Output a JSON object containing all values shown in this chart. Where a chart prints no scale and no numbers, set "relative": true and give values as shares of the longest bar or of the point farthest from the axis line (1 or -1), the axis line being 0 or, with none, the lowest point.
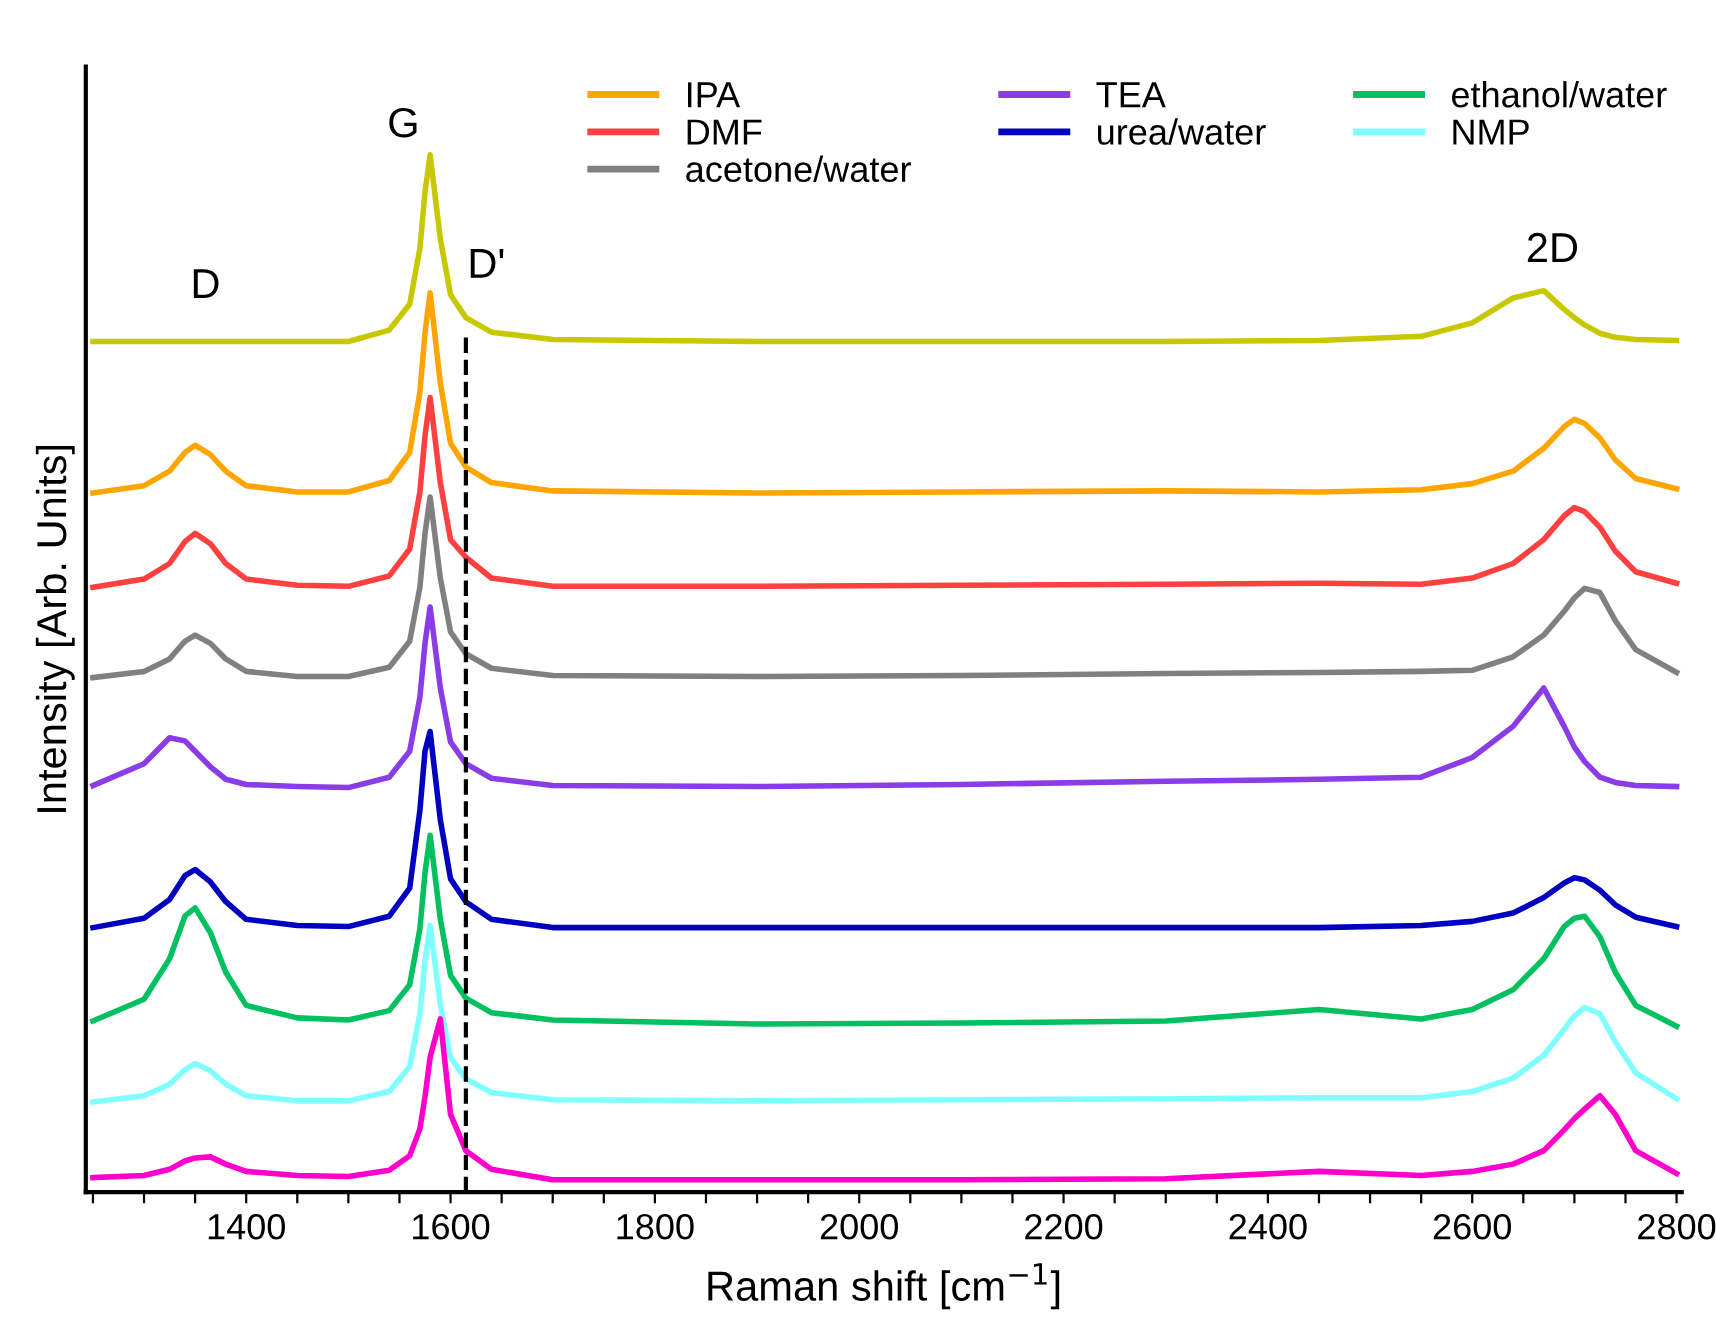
{
  "chart_data": {
    "type": "line",
    "relative": true,
    "xlabel": "Raman shift [cm$^{−1}$]",
    "ylabel": "Intensity [Arb. Units]",
    "xlim": [
      1243,
      2805
    ],
    "xticks": [
      {
        "value": 1250,
        "label": null
      },
      {
        "value": 1300,
        "label": null
      },
      {
        "value": 1350,
        "label": null
      },
      1400,
      {
        "value": 1450,
        "label": null
      },
      {
        "value": 1500,
        "label": null
      },
      {
        "value": 1550,
        "label": null
      },
      1600,
      {
        "value": 1650,
        "label": null
      },
      {
        "value": 1700,
        "label": null
      },
      {
        "value": 1750,
        "label": null
      },
      1800,
      {
        "value": 1850,
        "label": null
      },
      {
        "value": 1900,
        "label": null
      },
      {
        "value": 1950,
        "label": null
      },
      2000,
      {
        "value": 2050,
        "label": null
      },
      {
        "value": 2100,
        "label": null
      },
      {
        "value": 2150,
        "label": null
      },
      2200,
      {
        "value": 2250,
        "label": null
      },
      {
        "value": 2300,
        "label": null
      },
      {
        "value": 2350,
        "label": null
      },
      2400,
      {
        "value": 2450,
        "label": null
      },
      {
        "value": 2500,
        "label": null
      },
      {
        "value": 2550,
        "label": null
      },
      2600,
      {
        "value": 2650,
        "label": null
      },
      {
        "value": 2700,
        "label": null
      },
      {
        "value": 2750,
        "label": null
      },
      2800
    ],
    "tick_labels": "x",
    "grid": false,
    "legend": "top right",
    "marker": "none",
    "line_style": "solid",
    "x": [
      1250,
      1300,
      1325,
      1340,
      1350,
      1365,
      1380,
      1400,
      1450,
      1500,
      1540,
      1560,
      1570,
      1575,
      1580,
      1590,
      1600,
      1615,
      1640,
      1700,
      1900,
      2100,
      2300,
      2450,
      2550,
      2600,
      2640,
      2670,
      2690,
      2700,
      2710,
      2725,
      2740,
      2760,
      2800
    ],
    "series": [
      {
        "color": "#c8c800",
        "values": [
          0.82,
          0.82,
          0.82,
          0.82,
          0.82,
          0.82,
          0.82,
          0.82,
          0.82,
          0.82,
          0.831,
          0.856,
          0.91,
          0.964,
          1.0,
          0.919,
          0.865,
          0.843,
          0.829,
          0.822,
          0.82,
          0.82,
          0.82,
          0.821,
          0.825,
          0.838,
          0.862,
          0.869,
          0.851,
          0.843,
          0.836,
          0.828,
          0.824,
          0.822,
          0.821
        ]
      },
      {
        "name": "IPA",
        "color": "#ffa500",
        "values": [
          0.674,
          0.681,
          0.695,
          0.713,
          0.72,
          0.711,
          0.695,
          0.681,
          0.675,
          0.675,
          0.686,
          0.713,
          0.771,
          0.828,
          0.867,
          0.78,
          0.722,
          0.699,
          0.684,
          0.676,
          0.674,
          0.675,
          0.676,
          0.675,
          0.677,
          0.683,
          0.695,
          0.717,
          0.738,
          0.745,
          0.741,
          0.727,
          0.706,
          0.688,
          0.678
        ]
      },
      {
        "name": "DMF",
        "color": "#ff4040",
        "values": [
          0.583,
          0.591,
          0.606,
          0.627,
          0.635,
          0.625,
          0.606,
          0.591,
          0.585,
          0.584,
          0.594,
          0.62,
          0.675,
          0.729,
          0.766,
          0.684,
          0.629,
          0.612,
          0.592,
          0.584,
          0.584,
          0.585,
          0.586,
          0.587,
          0.586,
          0.592,
          0.606,
          0.629,
          0.652,
          0.66,
          0.656,
          0.641,
          0.618,
          0.598,
          0.587
        ]
      },
      {
        "name": "acetone/water",
        "color": "#808080",
        "values": [
          0.496,
          0.502,
          0.514,
          0.531,
          0.537,
          0.529,
          0.514,
          0.502,
          0.497,
          0.497,
          0.506,
          0.531,
          0.583,
          0.635,
          0.67,
          0.592,
          0.54,
          0.519,
          0.505,
          0.498,
          0.497,
          0.498,
          0.5,
          0.501,
          0.502,
          0.503,
          0.516,
          0.537,
          0.56,
          0.573,
          0.582,
          0.578,
          0.551,
          0.523,
          0.501
        ]
      },
      {
        "name": "TEA",
        "color": "#8a3ce6",
        "values": [
          0.392,
          0.413,
          0.438,
          0.435,
          0.425,
          0.41,
          0.398,
          0.393,
          0.391,
          0.39,
          0.4,
          0.425,
          0.477,
          0.529,
          0.564,
          0.486,
          0.434,
          0.413,
          0.399,
          0.392,
          0.391,
          0.393,
          0.396,
          0.398,
          0.4,
          0.419,
          0.449,
          0.486,
          0.449,
          0.429,
          0.415,
          0.4,
          0.395,
          0.392,
          0.391
        ]
      },
      {
        "name": "urea/water",
        "color": "#0000c0",
        "values": [
          0.255,
          0.264,
          0.282,
          0.305,
          0.311,
          0.299,
          0.28,
          0.263,
          0.257,
          0.256,
          0.266,
          0.293,
          0.368,
          0.425,
          0.444,
          0.359,
          0.302,
          0.28,
          0.263,
          0.255,
          0.255,
          0.255,
          0.255,
          0.255,
          0.257,
          0.261,
          0.269,
          0.284,
          0.298,
          0.303,
          0.301,
          0.291,
          0.277,
          0.265,
          0.256
        ]
      },
      {
        "name": "ethanol/water",
        "color": "#00c060",
        "values": [
          0.165,
          0.186,
          0.225,
          0.266,
          0.274,
          0.25,
          0.212,
          0.18,
          0.168,
          0.166,
          0.175,
          0.2,
          0.254,
          0.308,
          0.344,
          0.263,
          0.209,
          0.187,
          0.173,
          0.166,
          0.162,
          0.163,
          0.165,
          0.176,
          0.167,
          0.176,
          0.195,
          0.225,
          0.256,
          0.264,
          0.266,
          0.246,
          0.212,
          0.18,
          0.16
        ]
      },
      {
        "name": "NMP",
        "color": "#80ffff",
        "values": [
          0.087,
          0.093,
          0.104,
          0.118,
          0.124,
          0.117,
          0.104,
          0.093,
          0.088,
          0.088,
          0.097,
          0.121,
          0.172,
          0.223,
          0.257,
          0.181,
          0.13,
          0.109,
          0.096,
          0.089,
          0.088,
          0.089,
          0.09,
          0.091,
          0.091,
          0.097,
          0.11,
          0.132,
          0.157,
          0.17,
          0.178,
          0.172,
          0.145,
          0.115,
          0.09
        ]
      },
      {
        "color": "#ff00cc",
        "values": [
          0.014,
          0.016,
          0.022,
          0.03,
          0.033,
          0.034,
          0.027,
          0.02,
          0.016,
          0.015,
          0.021,
          0.035,
          0.061,
          0.092,
          0.13,
          0.167,
          0.075,
          0.04,
          0.022,
          0.012,
          0.012,
          0.012,
          0.013,
          0.02,
          0.016,
          0.02,
          0.027,
          0.04,
          0.06,
          0.071,
          0.08,
          0.093,
          0.075,
          0.04,
          0.018
        ]
      }
    ],
    "ref_lines": [
      {
        "axis": "x",
        "value": 1615,
        "color": "#000000",
        "line_style": "dashed"
      }
    ],
    "annotations": [
      "D",
      "G",
      "D'",
      "2D"
    ]
  }
}
